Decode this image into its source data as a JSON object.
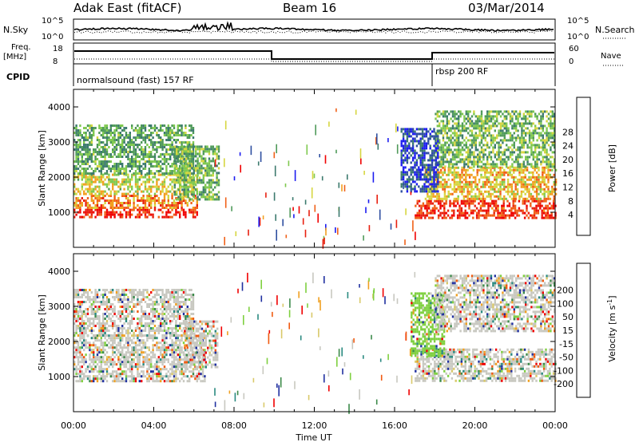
{
  "header": {
    "station": "Adak East (fitACF)",
    "beam": "Beam 16",
    "date": "03/Mar/2014"
  },
  "strip_labels": {
    "nsky": "N.Sky",
    "nsky_top": "10^5",
    "nsky_bottom": "10^0",
    "nsearch": "N.Search",
    "nsearch_top": "10^5",
    "nsearch_bottom": "10^0",
    "freq": "Freq.",
    "freq_unit": "[MHz]",
    "freq_top": "18",
    "freq_bottom": "8",
    "nave": "Nave",
    "nave_top": "60",
    "nave_bottom": "0",
    "cpid": "CPID",
    "cpid_1": "normalsound (fast) 157 RF",
    "cpid_2": "rbsp 200 RF"
  },
  "colors": {
    "power_scale": [
      "#1c1cf0",
      "#2f4fa0",
      "#3c7a6e",
      "#4f9a5a",
      "#7fc94f",
      "#d6d640",
      "#f2a020",
      "#f06018",
      "#e82010",
      "#f00000"
    ],
    "velocity_scale": [
      "#f00000",
      "#f05a10",
      "#f0a020",
      "#d9c96a",
      "#c8c8c0",
      "#c8c8c0",
      "#7fd040",
      "#3c8a4a",
      "#2a8a80",
      "#2030a0"
    ]
  },
  "chart_data": [
    {
      "type": "heatmap",
      "panel": "power",
      "ylabel": "Slant Range [km]",
      "yticks": [
        1000,
        2000,
        3000,
        4000
      ],
      "ylim": [
        0,
        4500
      ],
      "xlim": [
        0,
        24
      ],
      "colorbar_label": "Power [dB]",
      "colorbar_ticks": [
        "4",
        "8",
        "12",
        "16",
        "20",
        "24",
        "28"
      ],
      "bands": [
        {
          "t0": 0.0,
          "t1": 6.2,
          "r0": 850,
          "r1": 1100,
          "level": 0.92
        },
        {
          "t0": 0.0,
          "t1": 6.2,
          "r0": 1100,
          "r1": 1500,
          "level": 0.72
        },
        {
          "t0": 0.0,
          "t1": 6.2,
          "r0": 1500,
          "r1": 2100,
          "level": 0.55
        },
        {
          "t0": 0.0,
          "t1": 6.0,
          "r0": 2100,
          "r1": 3500,
          "level": 0.35
        },
        {
          "t0": 5.0,
          "t1": 7.2,
          "r0": 1400,
          "r1": 2900,
          "level": 0.4
        },
        {
          "t0": 17.0,
          "t1": 24.0,
          "r0": 850,
          "r1": 1350,
          "level": 0.88
        },
        {
          "t0": 17.5,
          "t1": 24.0,
          "r0": 1350,
          "r1": 2300,
          "level": 0.62
        },
        {
          "t0": 18.0,
          "t1": 24.0,
          "r0": 2300,
          "r1": 3900,
          "level": 0.4
        },
        {
          "t0": 16.3,
          "t1": 18.2,
          "r0": 1600,
          "r1": 3400,
          "level": 0.1
        }
      ]
    },
    {
      "type": "heatmap",
      "panel": "velocity",
      "ylabel": "Slant Range [km]",
      "yticks": [
        1000,
        2000,
        3000,
        4000
      ],
      "ylim": [
        0,
        4500
      ],
      "xlim": [
        0,
        24
      ],
      "xlabel": "Time UT",
      "xticks": [
        "00:00",
        "04:00",
        "08:00",
        "12:00",
        "16:00",
        "20:00",
        "00:00"
      ],
      "colorbar_label": "Velocity [m s",
      "colorbar_unit_sup": "-1",
      "colorbar_ticks": [
        "-200",
        "-100",
        "-50",
        "-15",
        "15",
        "50",
        "100",
        "200"
      ],
      "bands": [
        {
          "t0": 0.0,
          "t1": 6.5,
          "r0": 850,
          "r1": 2200,
          "level": 0.5
        },
        {
          "t0": 0.0,
          "t1": 6.0,
          "r0": 2200,
          "r1": 3500,
          "level": 0.6
        },
        {
          "t0": 5.5,
          "t1": 7.2,
          "r0": 1300,
          "r1": 2600,
          "level": 0.5
        },
        {
          "t0": 17.0,
          "t1": 24.0,
          "r0": 850,
          "r1": 1800,
          "level": 0.5
        },
        {
          "t0": 16.8,
          "t1": 18.5,
          "r0": 1600,
          "r1": 3400,
          "level": 0.72
        },
        {
          "t0": 18.0,
          "t1": 24.0,
          "r0": 2300,
          "r1": 3900,
          "level": 0.55
        }
      ]
    }
  ]
}
